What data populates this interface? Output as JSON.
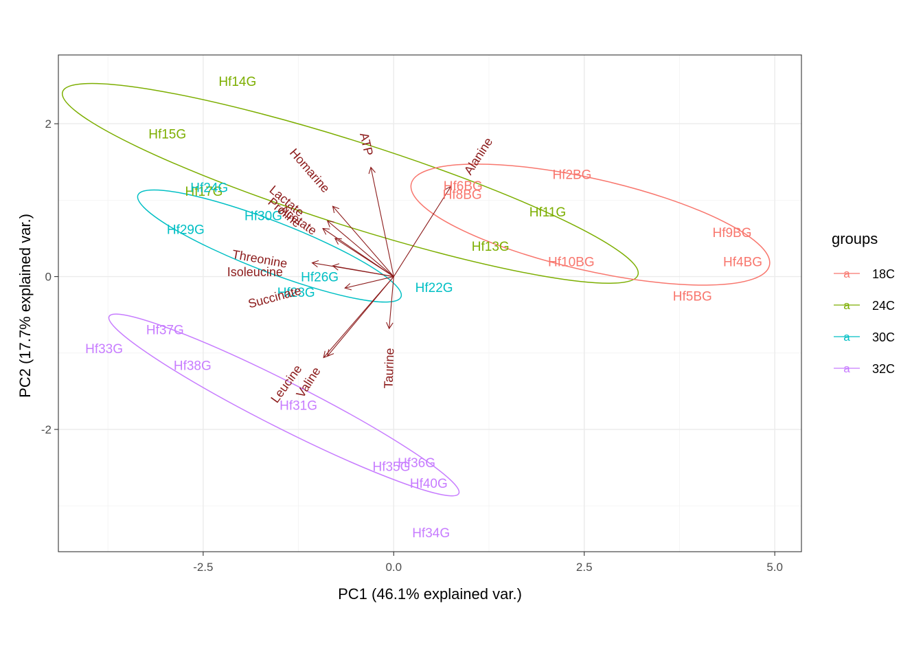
{
  "chart_data": {
    "type": "scatter",
    "subtype": "pca-biplot",
    "title": "",
    "xlabel": "PC1 (46.1% explained var.)",
    "ylabel": "PC2 (17.7% explained var.)",
    "xlim": [
      -4.4,
      5.35
    ],
    "ylim": [
      -3.6,
      2.9
    ],
    "x_ticks": [
      -2.5,
      0.0,
      2.5,
      5.0
    ],
    "x_tick_labels": [
      "-2.5",
      "0.0",
      "2.5",
      "5.0"
    ],
    "y_ticks": [
      -2,
      0,
      2
    ],
    "y_tick_labels": [
      "-2",
      "0",
      "2"
    ],
    "grid": true,
    "legend": {
      "title": "groups",
      "position": "right",
      "items": [
        {
          "label": "18C",
          "glyph": "a",
          "color": "#F8766D"
        },
        {
          "label": "24C",
          "glyph": "a",
          "color": "#7CAE00"
        },
        {
          "label": "30C",
          "glyph": "a",
          "color": "#00BFC4"
        },
        {
          "label": "32C",
          "glyph": "a",
          "color": "#C77CFF"
        }
      ]
    },
    "colors": {
      "18C": "#F8766D",
      "24C": "#7CAE00",
      "30C": "#00BFC4",
      "32C": "#C77CFF",
      "loadings": "#8B1A1A"
    },
    "points": [
      {
        "label": "Hf14G",
        "x": -2.05,
        "y": 2.56,
        "group": "24C"
      },
      {
        "label": "Hf15G",
        "x": -2.97,
        "y": 1.87,
        "group": "24C"
      },
      {
        "label": "Hf17G",
        "x": -2.49,
        "y": 1.12,
        "group": "24C"
      },
      {
        "label": "Hf11G",
        "x": 2.02,
        "y": 0.85,
        "group": "24C"
      },
      {
        "label": "Hf13G",
        "x": 1.27,
        "y": 0.4,
        "group": "24C"
      },
      {
        "label": "Hf24G",
        "x": -2.42,
        "y": 1.17,
        "group": "30C"
      },
      {
        "label": "Hf29G",
        "x": -2.73,
        "y": 0.62,
        "group": "30C"
      },
      {
        "label": "Hf30G",
        "x": -1.71,
        "y": 0.8,
        "group": "30C"
      },
      {
        "label": "Hf26G",
        "x": -0.97,
        "y": 0.0,
        "group": "30C"
      },
      {
        "label": "Hf23G",
        "x": -1.28,
        "y": -0.2,
        "group": "30C"
      },
      {
        "label": "Hf22G",
        "x": 0.53,
        "y": -0.14,
        "group": "30C"
      },
      {
        "label": "Hf2BG",
        "x": 2.34,
        "y": 1.34,
        "group": "18C"
      },
      {
        "label": "Hf6BG",
        "x": 0.91,
        "y": 1.19,
        "group": "18C"
      },
      {
        "label": "Hf8BG",
        "x": 0.9,
        "y": 1.08,
        "group": "18C"
      },
      {
        "label": "Hf9BG",
        "x": 4.44,
        "y": 0.58,
        "group": "18C"
      },
      {
        "label": "Hf4BG",
        "x": 4.58,
        "y": 0.2,
        "group": "18C"
      },
      {
        "label": "Hf10BG",
        "x": 2.33,
        "y": 0.2,
        "group": "18C"
      },
      {
        "label": "Hf5BG",
        "x": 3.92,
        "y": -0.25,
        "group": "18C"
      },
      {
        "label": "Hf37G",
        "x": -3.0,
        "y": -0.69,
        "group": "32C"
      },
      {
        "label": "Hf33G",
        "x": -3.8,
        "y": -0.94,
        "group": "32C"
      },
      {
        "label": "Hf38G",
        "x": -2.64,
        "y": -1.16,
        "group": "32C"
      },
      {
        "label": "Hf31G",
        "x": -1.25,
        "y": -1.68,
        "group": "32C"
      },
      {
        "label": "Hf36G",
        "x": 0.3,
        "y": -2.43,
        "group": "32C"
      },
      {
        "label": "Hf35G",
        "x": -0.03,
        "y": -2.48,
        "group": "32C"
      },
      {
        "label": "Hf40G",
        "x": 0.46,
        "y": -2.7,
        "group": "32C"
      },
      {
        "label": "Hf34G",
        "x": 0.49,
        "y": -3.35,
        "group": "32C"
      }
    ],
    "ellipses": [
      {
        "group": "24C",
        "cx": -0.57,
        "cy": 1.22,
        "rx": 3.96,
        "ry": 0.55,
        "angle_deg": -17.6
      },
      {
        "group": "30C",
        "cx": -1.63,
        "cy": 0.4,
        "rx": 1.85,
        "ry": 0.33,
        "angle_deg": -21.1
      },
      {
        "group": "18C",
        "cx": 2.58,
        "cy": 0.68,
        "rx": 2.41,
        "ry": 0.6,
        "angle_deg": -12.8
      },
      {
        "group": "32C",
        "cx": -1.44,
        "cy": -1.68,
        "rx": 2.57,
        "ry": 0.3,
        "angle_deg": -26.8
      }
    ],
    "loadings": [
      {
        "label": "ATP",
        "x": -0.3,
        "y": 1.43,
        "label_x": -0.37,
        "label_y": 1.73,
        "angle_deg": 77
      },
      {
        "label": "Alanine",
        "x": 0.75,
        "y": 1.18,
        "label_x": 1.12,
        "label_y": 1.57,
        "angle_deg": -57
      },
      {
        "label": "Homarine",
        "x": -0.8,
        "y": 0.92,
        "label_x": -1.11,
        "label_y": 1.38,
        "angle_deg": 49
      },
      {
        "label": "Lactate",
        "x": -0.87,
        "y": 0.73,
        "label_x": -1.41,
        "label_y": 0.98,
        "angle_deg": 40
      },
      {
        "label": "Proline",
        "x": -0.93,
        "y": 0.63,
        "label_x": -1.44,
        "label_y": 0.83,
        "angle_deg": 40
      },
      {
        "label": "Acetate",
        "x": -0.77,
        "y": 0.5,
        "label_x": -1.26,
        "label_y": 0.73,
        "angle_deg": 35
      },
      {
        "label": "Threonine",
        "x": -1.07,
        "y": 0.18,
        "label_x": -1.76,
        "label_y": 0.22,
        "angle_deg": 10
      },
      {
        "label": "Isoleucine",
        "x": -0.8,
        "y": 0.14,
        "label_x": -1.82,
        "label_y": 0.05,
        "angle_deg": 0
      },
      {
        "label": "Succinate",
        "x": -0.64,
        "y": -0.15,
        "label_x": -1.56,
        "label_y": -0.28,
        "angle_deg": -15
      },
      {
        "label": "Taurine",
        "x": -0.06,
        "y": -0.68,
        "label_x": -0.05,
        "label_y": -1.2,
        "angle_deg": -88
      },
      {
        "label": "Leucine",
        "x": -0.87,
        "y": -1.04,
        "label_x": -1.4,
        "label_y": -1.41,
        "angle_deg": -54
      },
      {
        "label": "Valine",
        "x": -0.92,
        "y": -1.06,
        "label_x": -1.11,
        "label_y": -1.39,
        "angle_deg": -57
      }
    ]
  }
}
